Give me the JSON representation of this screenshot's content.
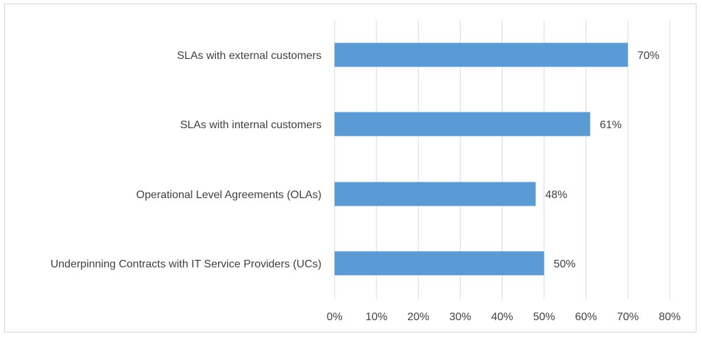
{
  "chart_data": {
    "type": "bar",
    "orientation": "horizontal",
    "categories": [
      "SLAs with external customers",
      "SLAs with internal customers",
      "Operational Level Agreements (OLAs)",
      "Underpinning Contracts with IT Service Providers (UCs)"
    ],
    "values": [
      70,
      61,
      48,
      50
    ],
    "data_labels": [
      "70%",
      "61%",
      "48%",
      "50%"
    ],
    "x_ticks": [
      "0%",
      "10%",
      "20%",
      "30%",
      "40%",
      "50%",
      "60%",
      "70%",
      "80%"
    ],
    "xlim": [
      0,
      80
    ],
    "grid": "vertical",
    "legend": "none",
    "bar_color": "#5b9bd5",
    "title": "",
    "xlabel": "",
    "ylabel": ""
  }
}
